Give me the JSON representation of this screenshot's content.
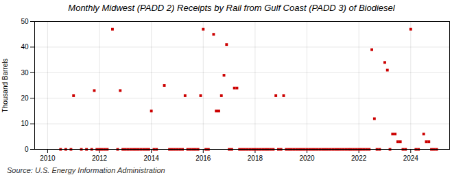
{
  "chart_data": {
    "type": "scatter",
    "title": "Monthly Midwest (PADD 2) Receipts by Rail from Gulf Coast (PADD 3) of Biodiesel",
    "ylabel": "Thousand Barrels",
    "source": "Source: U.S. Energy Information Administration",
    "color": "#cc0000",
    "marker": "square",
    "grid": true,
    "xlim": [
      2009.5,
      2025.5
    ],
    "ylim": [
      0,
      50
    ],
    "xticks": [
      2010,
      2012,
      2014,
      2016,
      2018,
      2020,
      2022,
      2024
    ],
    "yticks": [
      0,
      10,
      20,
      30,
      40,
      50
    ],
    "x": [
      2010.5,
      2010.7,
      2010.9,
      2011.0,
      2011.3,
      2011.5,
      2011.7,
      2011.8,
      2011.9,
      2012.0,
      2012.1,
      2012.2,
      2012.3,
      2012.5,
      2012.7,
      2012.8,
      2012.9,
      2013.0,
      2013.1,
      2013.2,
      2013.3,
      2013.4,
      2013.5,
      2013.6,
      2013.7,
      2013.8,
      2013.9,
      2014.0,
      2014.1,
      2014.2,
      2014.5,
      2014.7,
      2014.8,
      2014.9,
      2015.0,
      2015.1,
      2015.2,
      2015.3,
      2015.4,
      2015.5,
      2015.6,
      2015.7,
      2015.8,
      2015.9,
      2016.0,
      2016.1,
      2016.2,
      2016.4,
      2016.5,
      2016.6,
      2016.7,
      2016.8,
      2016.9,
      2017.0,
      2017.1,
      2017.2,
      2017.3,
      2017.4,
      2017.5,
      2017.6,
      2017.7,
      2017.8,
      2017.9,
      2018.0,
      2018.1,
      2018.2,
      2018.3,
      2018.4,
      2018.5,
      2018.6,
      2018.7,
      2018.8,
      2018.9,
      2019.0,
      2019.1,
      2019.2,
      2019.3,
      2019.4,
      2019.5,
      2019.6,
      2019.7,
      2019.8,
      2019.9,
      2020.0,
      2020.1,
      2020.2,
      2020.3,
      2020.4,
      2020.5,
      2020.6,
      2020.7,
      2020.8,
      2020.9,
      2021.0,
      2021.1,
      2021.2,
      2021.3,
      2021.4,
      2021.5,
      2021.6,
      2021.7,
      2021.8,
      2021.9,
      2022.0,
      2022.1,
      2022.2,
      2022.3,
      2022.4,
      2022.5,
      2022.6,
      2022.7,
      2022.8,
      2023.0,
      2023.1,
      2023.2,
      2023.3,
      2023.4,
      2023.5,
      2023.6,
      2023.7,
      2023.8,
      2024.0,
      2024.2,
      2024.3,
      2024.5,
      2024.6,
      2024.7,
      2024.8,
      2024.9,
      2025.0
    ],
    "values": [
      0,
      0,
      0,
      21,
      0,
      0,
      0,
      23,
      0,
      0,
      0,
      0,
      0,
      47,
      0,
      23,
      0,
      0,
      0,
      0,
      0,
      0,
      0,
      0,
      0,
      0,
      0,
      15,
      0,
      0,
      25,
      0,
      0,
      0,
      0,
      0,
      0,
      21,
      0,
      0,
      0,
      0,
      0,
      21,
      47,
      0,
      0,
      45,
      15,
      15,
      21,
      29,
      41,
      0,
      0,
      24,
      24,
      0,
      0,
      0,
      0,
      0,
      0,
      0,
      0,
      0,
      0,
      0,
      0,
      0,
      0,
      21,
      0,
      0,
      21,
      0,
      0,
      0,
      0,
      0,
      0,
      0,
      0,
      0,
      0,
      0,
      0,
      0,
      0,
      0,
      0,
      0,
      0,
      0,
      0,
      0,
      0,
      0,
      0,
      0,
      0,
      0,
      0,
      0,
      0,
      0,
      0,
      0,
      39,
      12,
      0,
      0,
      34,
      31,
      0,
      6,
      6,
      3,
      3,
      0,
      0,
      47,
      0,
      0,
      6,
      3,
      3,
      0,
      0,
      0
    ]
  }
}
